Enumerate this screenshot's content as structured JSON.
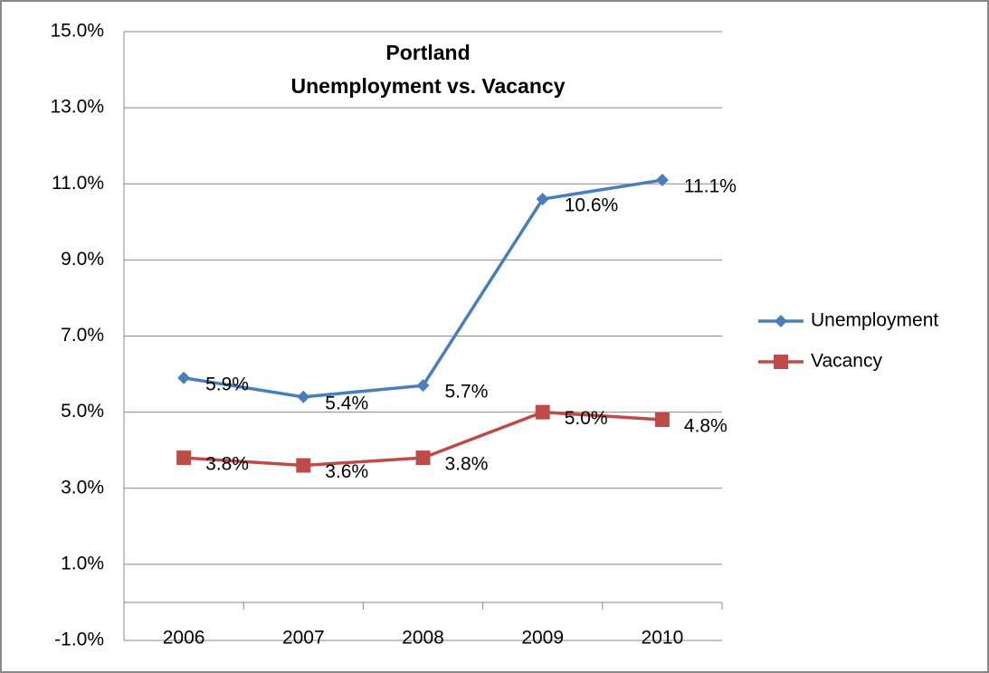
{
  "chart_data": {
    "type": "line",
    "title": [
      "Portland",
      "Unemployment vs. Vacancy"
    ],
    "categories": [
      "2006",
      "2007",
      "2008",
      "2009",
      "2010"
    ],
    "series": [
      {
        "name": "Unemployment",
        "color": "#4a7ebb",
        "marker": "diamond",
        "values": [
          5.9,
          5.4,
          5.7,
          10.6,
          11.1
        ],
        "value_labels": [
          "5.9%",
          "5.4%",
          "5.7%",
          "10.6%",
          "11.1%"
        ]
      },
      {
        "name": "Vacancy",
        "color": "#be4b48",
        "marker": "square",
        "values": [
          3.8,
          3.6,
          3.8,
          5.0,
          4.8
        ],
        "value_labels": [
          "3.8%",
          "3.6%",
          "3.8%",
          "5.0%",
          "4.8%"
        ]
      }
    ],
    "ylim": [
      -1,
      15
    ],
    "yticks": [
      {
        "value": -1,
        "label": "-1.0%"
      },
      {
        "value": 1,
        "label": "1.0%"
      },
      {
        "value": 3,
        "label": "3.0%"
      },
      {
        "value": 5,
        "label": "5.0%"
      },
      {
        "value": 7,
        "label": "7.0%"
      },
      {
        "value": 9,
        "label": "9.0%"
      },
      {
        "value": 11,
        "label": "11.0%"
      },
      {
        "value": 13,
        "label": "13.0%"
      },
      {
        "value": 15,
        "label": "15.0%"
      }
    ],
    "grid": true,
    "legend": "right"
  }
}
